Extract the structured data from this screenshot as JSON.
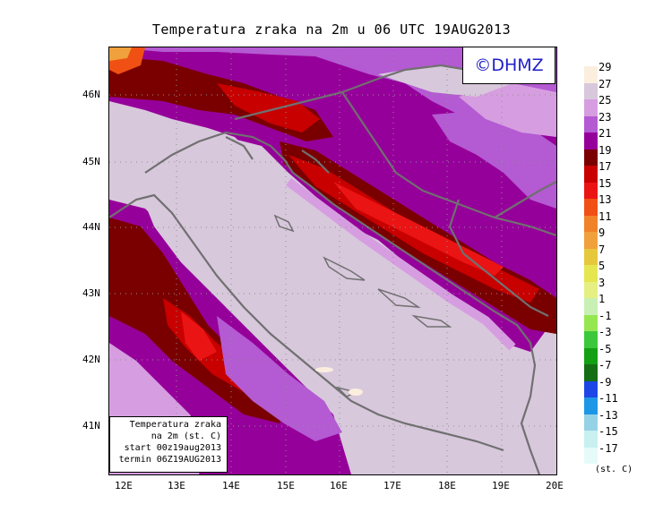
{
  "title": "Temperatura zraka na 2m u 06 UTC 19AUG2013",
  "logo": "©DHMZ",
  "info": [
    "Temperatura zraka",
    "na 2m (st. C)",
    "start 00z19aug2013",
    "termin 06Z19AUG2013"
  ],
  "lat_labels": [
    "46N",
    "45N",
    "44N",
    "43N",
    "42N",
    "41N"
  ],
  "lon_labels": [
    "12E",
    "13E",
    "14E",
    "15E",
    "16E",
    "17E",
    "18E",
    "19E",
    "20E"
  ],
  "legend": {
    "labels": [
      "29",
      "27",
      "25",
      "23",
      "21",
      "19",
      "17",
      "15",
      "13",
      "11",
      "9",
      "7",
      "5",
      "3",
      "1",
      "-1",
      "-3",
      "-5",
      "-7",
      "-9",
      "-11",
      "-13",
      "-15",
      "-17"
    ],
    "colors": [
      "#fbeede",
      "#d8c8dc",
      "#d69ee0",
      "#b45ad2",
      "#96009a",
      "#7a0000",
      "#c80000",
      "#eb1414",
      "#f05014",
      "#f08228",
      "#f0a03c",
      "#e6c83c",
      "#e6e650",
      "#e6f082",
      "#c8f0b4",
      "#96e650",
      "#3cc83c",
      "#14a014",
      "#146e14",
      "#1e46e6",
      "#1e96e6",
      "#96d2e6",
      "#c8f0f0",
      "#e6fafa"
    ],
    "units": "(st. C)"
  },
  "map_colors": {
    "sea": "#d8c8dc",
    "coast_band": "#d69ee0",
    "warm_band": "#b45ad2",
    "inland": "#96009a",
    "hot": "#7a0000",
    "hotter": "#c80000",
    "hottest": "#eb1414",
    "peak": "#f05014",
    "orange": "#f0a03c",
    "borders": "#707070",
    "grid": "#909090"
  }
}
